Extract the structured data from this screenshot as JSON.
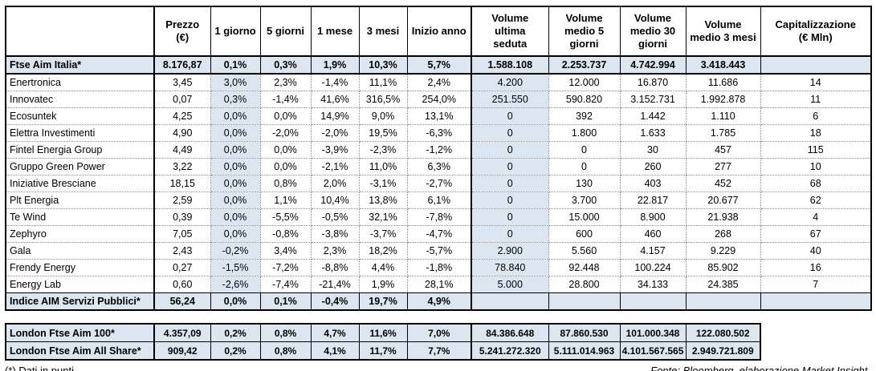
{
  "colors": {
    "row_highlight": "#dce6f1",
    "border": "#000000",
    "background": "#ffffff"
  },
  "table": {
    "columns": [
      "",
      "Prezzo\n(€)",
      "1 giorno",
      "5 giorni",
      "1 mese",
      "3 mesi",
      "Inizio anno",
      "Volume\nultima\nseduta",
      "Volume\nmedio 5\ngiorni",
      "Volume\nmedio 30\ngiorni",
      "Volume\nmedio 3 mesi",
      "Capitalizzazione\n(€ Mln)"
    ],
    "rows": [
      {
        "type": "index",
        "name": "Ftse Aim Italia*",
        "values": [
          "8.176,87",
          "0,1%",
          "0,3%",
          "1,9%",
          "10,3%",
          "5,7%",
          "1.588.108",
          "2.253.737",
          "4.742.994",
          "3.418.443",
          ""
        ]
      },
      {
        "type": "stock",
        "name": "Enertronica",
        "values": [
          "3,45",
          "3,0%",
          "2,3%",
          "-1,4%",
          "11,1%",
          "2,4%",
          "4.200",
          "12.000",
          "16.870",
          "11.686",
          "14"
        ]
      },
      {
        "type": "stock",
        "name": "Innovatec",
        "values": [
          "0,07",
          "0,3%",
          "-1,4%",
          "41,6%",
          "316,5%",
          "254,0%",
          "251.550",
          "590.820",
          "3.152.731",
          "1.992.878",
          "11"
        ]
      },
      {
        "type": "stock",
        "name": "Ecosuntek",
        "values": [
          "4,25",
          "0,0%",
          "0,0%",
          "14,9%",
          "9,0%",
          "13,1%",
          "0",
          "392",
          "1.442",
          "1.110",
          "6"
        ]
      },
      {
        "type": "stock",
        "name": "Elettra Investimenti",
        "values": [
          "4,90",
          "0,0%",
          "-2,0%",
          "-2,0%",
          "19,5%",
          "-6,3%",
          "0",
          "1.800",
          "1.633",
          "1.785",
          "18"
        ]
      },
      {
        "type": "stock",
        "name": "Fintel Energia Group",
        "values": [
          "4,49",
          "0,0%",
          "0,0%",
          "-3,9%",
          "-2,3%",
          "-1,2%",
          "0",
          "0",
          "30",
          "457",
          "115"
        ]
      },
      {
        "type": "stock",
        "name": "Gruppo Green Power",
        "values": [
          "3,22",
          "0,0%",
          "0,0%",
          "-2,1%",
          "11,0%",
          "6,3%",
          "0",
          "0",
          "260",
          "277",
          "10"
        ]
      },
      {
        "type": "stock",
        "name": "Iniziative Bresciane",
        "values": [
          "18,15",
          "0,0%",
          "0,8%",
          "2,0%",
          "-3,1%",
          "-2,7%",
          "0",
          "130",
          "403",
          "452",
          "68"
        ]
      },
      {
        "type": "stock",
        "name": "Plt Energia",
        "values": [
          "2,59",
          "0,0%",
          "1,1%",
          "10,4%",
          "13,8%",
          "6,1%",
          "0",
          "3.700",
          "22.817",
          "20.677",
          "62"
        ]
      },
      {
        "type": "stock",
        "name": "Te Wind",
        "values": [
          "0,39",
          "0,0%",
          "-5,5%",
          "-0,5%",
          "32,1%",
          "-7,8%",
          "0",
          "15.000",
          "8.900",
          "21.938",
          "4"
        ]
      },
      {
        "type": "stock",
        "name": "Zephyro",
        "values": [
          "7,05",
          "0,0%",
          "-0,8%",
          "-3,8%",
          "-3,7%",
          "-4,7%",
          "0",
          "600",
          "460",
          "268",
          "67"
        ]
      },
      {
        "type": "stock",
        "name": "Gala",
        "values": [
          "2,43",
          "-0,2%",
          "3,4%",
          "2,3%",
          "18,2%",
          "-5,7%",
          "2.900",
          "5.560",
          "4.157",
          "9.229",
          "40"
        ]
      },
      {
        "type": "stock",
        "name": "Frendy Energy",
        "values": [
          "0,27",
          "-1,5%",
          "-7,2%",
          "-8,8%",
          "4,4%",
          "-1,8%",
          "78.840",
          "92.448",
          "100.224",
          "85.902",
          "16"
        ]
      },
      {
        "type": "stock",
        "name": "Energy Lab",
        "values": [
          "0,60",
          "-2,6%",
          "-7,4%",
          "-21,4%",
          "1,9%",
          "28,1%",
          "5.000",
          "28.800",
          "34.133",
          "24.385",
          "7"
        ]
      },
      {
        "type": "index",
        "name": "Indice AIM Servizi Pubblici*",
        "values": [
          "56,24",
          "0,0%",
          "0,1%",
          "-0,4%",
          "19,7%",
          "4,9%",
          "",
          "",
          "",
          "",
          ""
        ]
      }
    ]
  },
  "london_table": {
    "rows": [
      {
        "type": "index",
        "name": "London Ftse Aim 100*",
        "values": [
          "4.357,09",
          "0,2%",
          "0,8%",
          "4,7%",
          "11,6%",
          "7,0%",
          "84.386.648",
          "87.860.530",
          "101.000.348",
          "122.080.502"
        ]
      },
      {
        "type": "index",
        "name": "London Ftse Aim All Share*",
        "values": [
          "909,42",
          "0,2%",
          "0,8%",
          "4,1%",
          "11,7%",
          "7,7%",
          "5.241.272.320",
          "5.111.014.963",
          "4.101.567.565",
          "2.949.721.809"
        ]
      }
    ]
  },
  "footer": {
    "note": "(*) Dati in punti",
    "source": "Fonte: Bloomberg, elaborazione Market Insight."
  }
}
